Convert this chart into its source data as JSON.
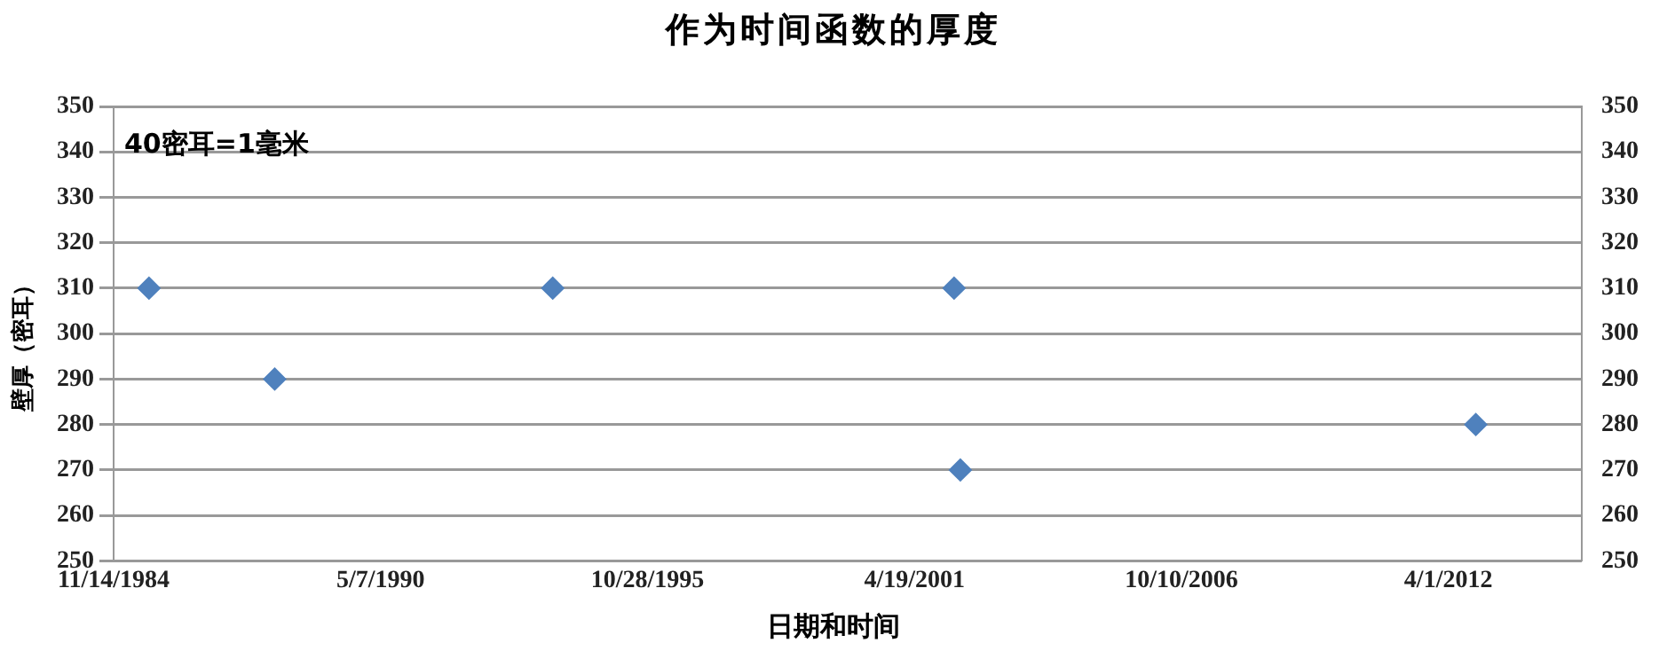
{
  "chart_data": {
    "type": "scatter",
    "title": "作为时间函数的厚度",
    "xlabel": "日期和时间",
    "ylabel": "壁厚（密耳）",
    "annotations": [
      "40密耳=1毫米"
    ],
    "x": [
      "1985-08-06",
      "1988-03-05",
      "1993-11-17",
      "2002-02-10",
      "2002-03-29",
      "2012-10-24"
    ],
    "series": [
      {
        "color": "#4f81bd",
        "values": [
          310,
          290,
          310,
          310,
          270,
          280
        ]
      }
    ],
    "xlim": [
      "1984-11-14",
      "2014-12-27"
    ],
    "xticks": [
      {
        "value": "1984-11-14",
        "label": "11/14/1984"
      },
      {
        "value": "1990-05-07",
        "label": "5/7/1990"
      },
      {
        "value": "1995-10-28",
        "label": "10/28/1995"
      },
      {
        "value": "2001-04-19",
        "label": "4/19/2001"
      },
      {
        "value": "2006-10-10",
        "label": "10/10/2006"
      },
      {
        "value": "2012-04-01",
        "label": "4/1/2012"
      }
    ],
    "ylim": [
      250,
      350
    ],
    "yticks": [
      250,
      260,
      270,
      280,
      290,
      300,
      310,
      320,
      330,
      340,
      350
    ],
    "y2lim": [
      250,
      350
    ],
    "y2ticks": [
      250,
      260,
      270,
      280,
      290,
      300,
      310,
      320,
      330,
      340,
      350
    ],
    "grid": "y",
    "legend": false,
    "marker": "diamond"
  }
}
